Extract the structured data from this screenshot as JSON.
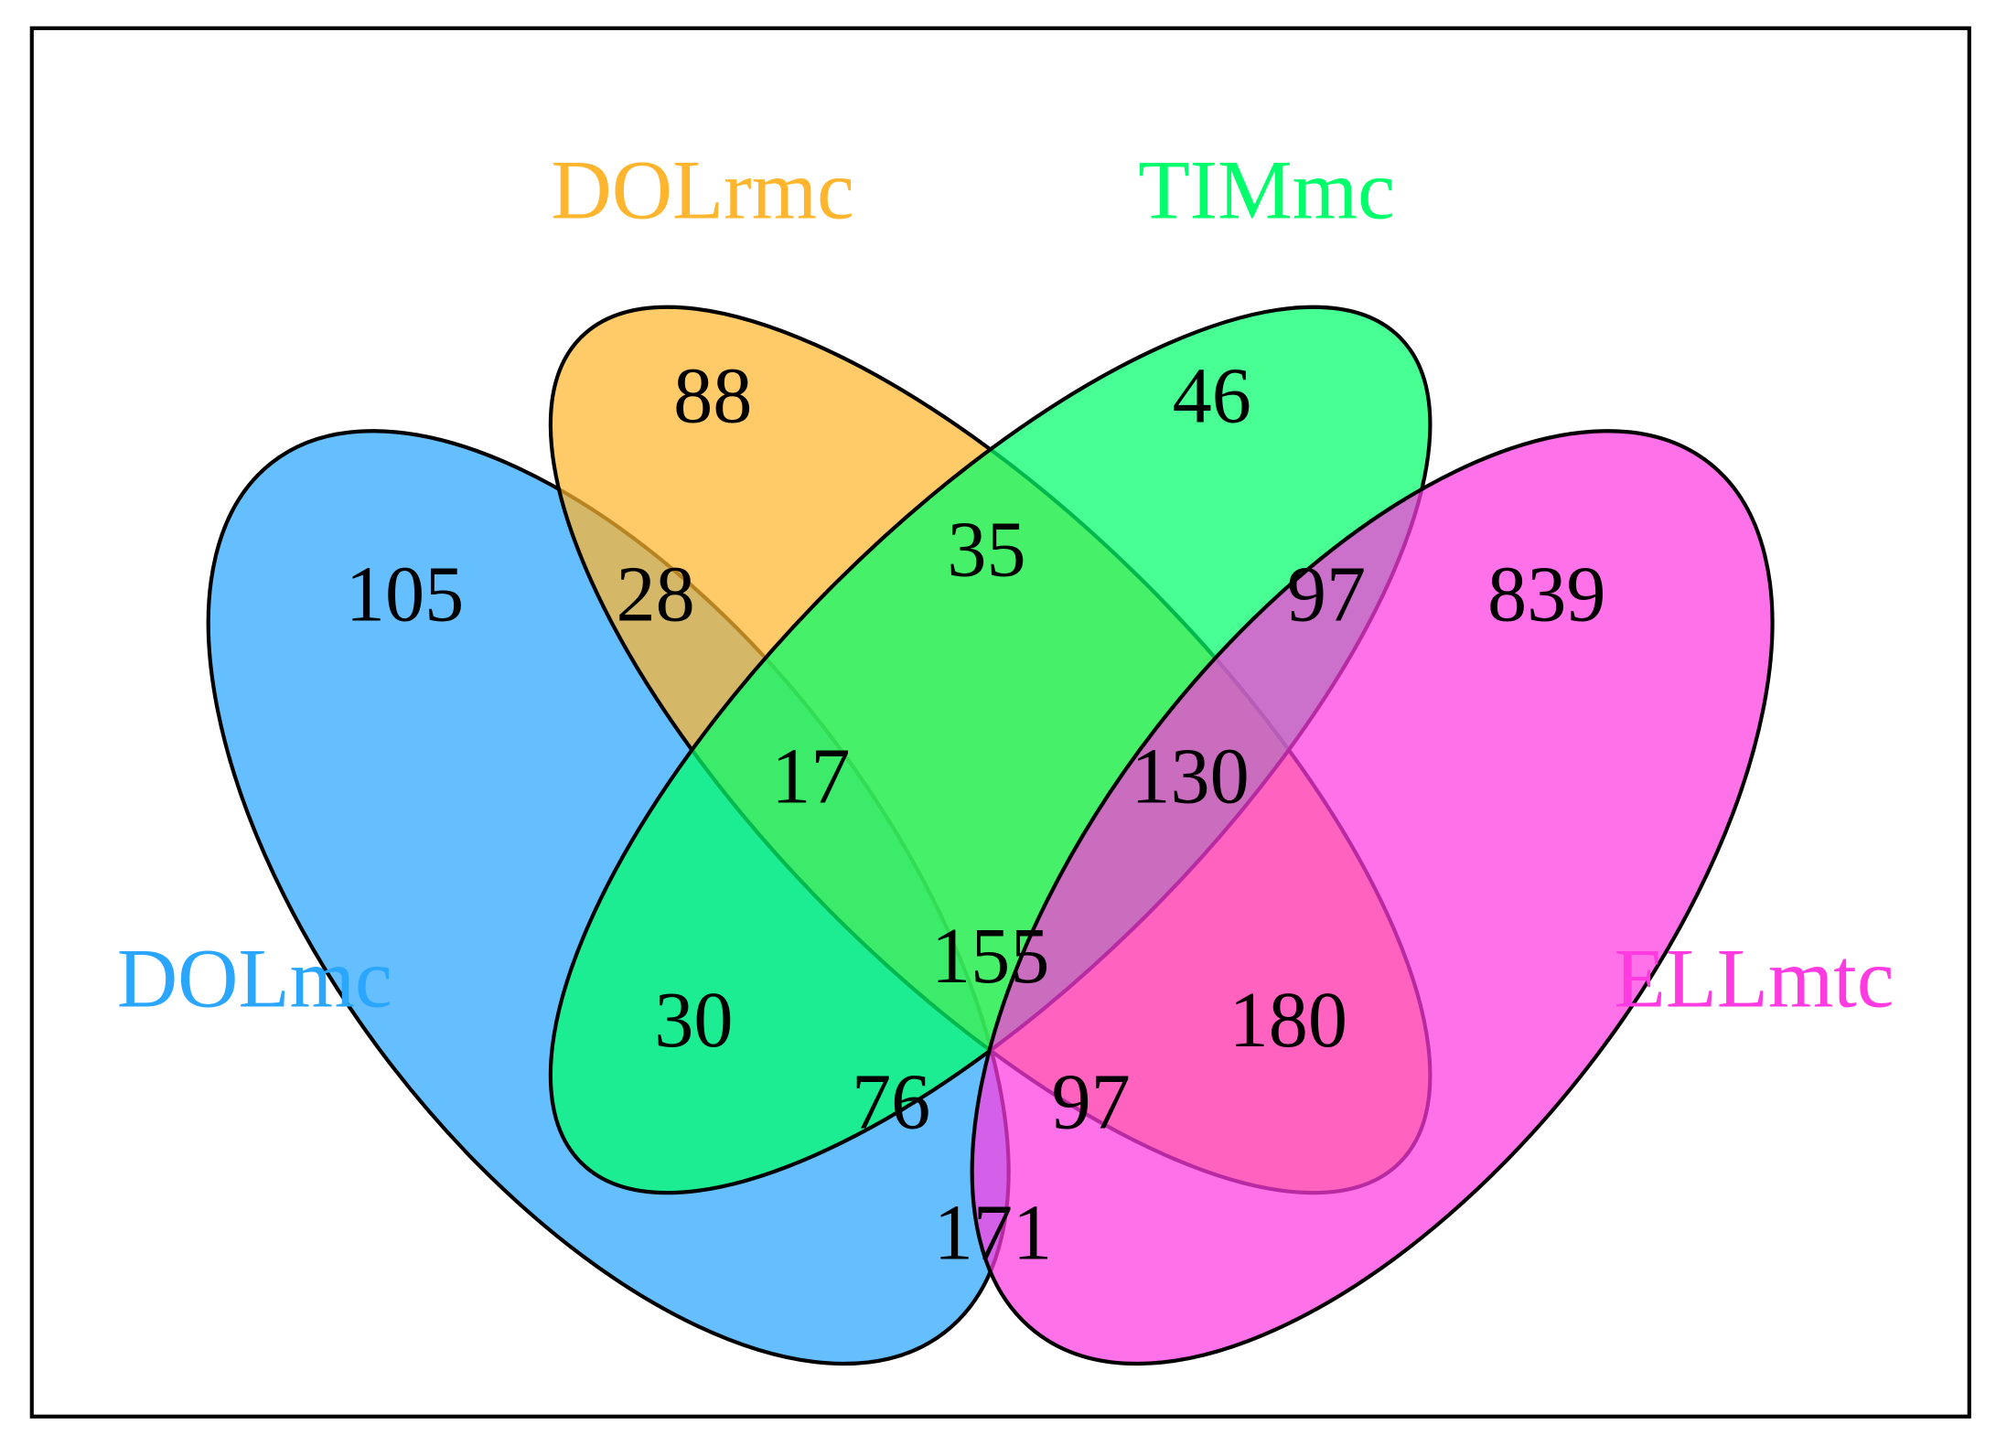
{
  "chart_data": {
    "type": "venn",
    "sets": [
      {
        "name": "DOLmc",
        "color": "#2aa6ff"
      },
      {
        "name": "DOLrmc",
        "color": "#ffb52e"
      },
      {
        "name": "TIMmc",
        "color": "#00ff6a"
      },
      {
        "name": "ELLmtc",
        "color": "#ff3ae0"
      }
    ],
    "values": [
      105,
      88,
      46,
      839,
      28,
      35,
      97,
      17,
      130,
      155,
      30,
      180,
      76,
      97,
      171
    ]
  }
}
